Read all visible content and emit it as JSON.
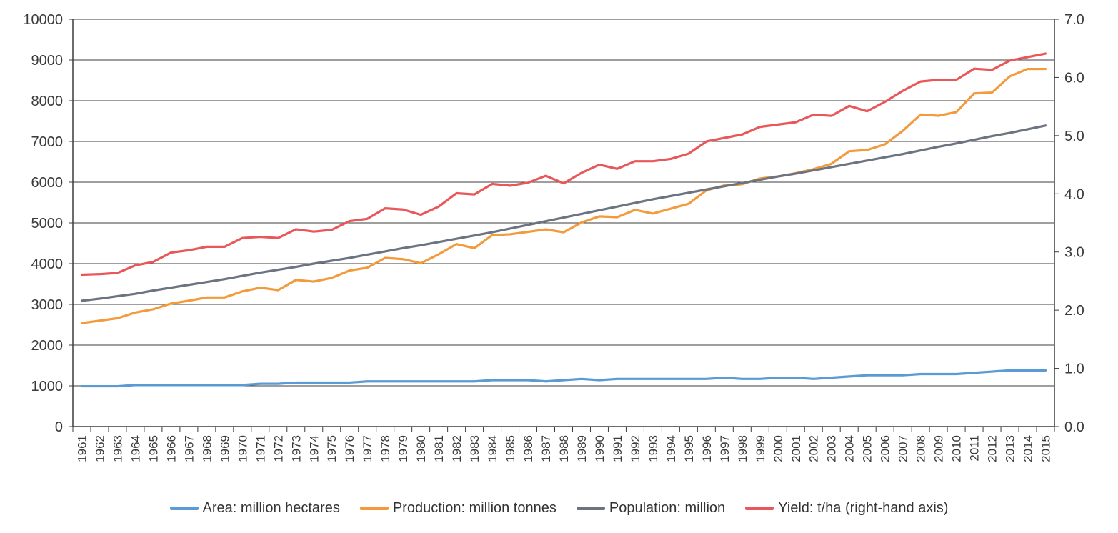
{
  "chart_data": {
    "type": "line",
    "title": "",
    "xlabel": "",
    "ylabel": "",
    "ylim": [
      0,
      10000
    ],
    "y2lim": [
      0,
      7
    ],
    "yticks": [
      "0",
      "1000",
      "2000",
      "3000",
      "4000",
      "5000",
      "6000",
      "7000",
      "8000",
      "9000",
      "10000"
    ],
    "y2ticks": [
      "0.0",
      "1.0",
      "2.0",
      "3.0",
      "4.0",
      "5.0",
      "6.0",
      "7.0"
    ],
    "grid": true,
    "legend_position": "bottom",
    "categories": [
      "1961",
      "1962",
      "1963",
      "1964",
      "1965",
      "1966",
      "1967",
      "1968",
      "1969",
      "1970",
      "1971",
      "1972",
      "1973",
      "1974",
      "1975",
      "1976",
      "1977",
      "1978",
      "1979",
      "1980",
      "1981",
      "1982",
      "1983",
      "1984",
      "1985",
      "1986",
      "1987",
      "1988",
      "1989",
      "1990",
      "1991",
      "1992",
      "1993",
      "1994",
      "1995",
      "1996",
      "1997",
      "1998",
      "1999",
      "2000",
      "2001",
      "2002",
      "2003",
      "2004",
      "2005",
      "2006",
      "2007",
      "2008",
      "2009",
      "2010",
      "2011",
      "2012",
      "2013",
      "2014",
      "2015"
    ],
    "series": [
      {
        "name": "Area: million hectares",
        "color": "#5b9bd5",
        "axis": "left",
        "values": [
          990,
          990,
          990,
          1020,
          1020,
          1020,
          1020,
          1020,
          1020,
          1020,
          1050,
          1050,
          1080,
          1080,
          1080,
          1080,
          1110,
          1110,
          1110,
          1110,
          1110,
          1110,
          1110,
          1140,
          1140,
          1140,
          1110,
          1140,
          1170,
          1140,
          1170,
          1170,
          1170,
          1170,
          1170,
          1170,
          1200,
          1170,
          1170,
          1200,
          1200,
          1170,
          1200,
          1230,
          1260,
          1260,
          1260,
          1290,
          1290,
          1290,
          1320,
          1350,
          1380,
          1380,
          1380
        ]
      },
      {
        "name": "Production: million tonnes",
        "color": "#f39b3c",
        "axis": "left",
        "values": [
          2540,
          2600,
          2660,
          2800,
          2880,
          3020,
          3090,
          3170,
          3170,
          3320,
          3410,
          3350,
          3600,
          3560,
          3650,
          3830,
          3900,
          4140,
          4110,
          4010,
          4230,
          4480,
          4380,
          4700,
          4720,
          4780,
          4840,
          4770,
          5010,
          5160,
          5140,
          5320,
          5230,
          5350,
          5470,
          5800,
          5920,
          5950,
          6090,
          6140,
          6220,
          6320,
          6450,
          6760,
          6790,
          6930,
          7260,
          7660,
          7630,
          7720,
          8180,
          8200,
          8600,
          8780,
          8780
        ]
      },
      {
        "name": "Population: million",
        "color": "#6b7480",
        "axis": "left",
        "values": [
          3090,
          3140,
          3200,
          3260,
          3340,
          3410,
          3480,
          3550,
          3620,
          3700,
          3780,
          3850,
          3920,
          4000,
          4070,
          4140,
          4220,
          4300,
          4380,
          4450,
          4530,
          4610,
          4690,
          4770,
          4860,
          4950,
          5040,
          5130,
          5220,
          5310,
          5400,
          5490,
          5580,
          5660,
          5740,
          5820,
          5900,
          5980,
          6060,
          6140,
          6210,
          6290,
          6370,
          6450,
          6530,
          6610,
          6690,
          6780,
          6870,
          6950,
          7040,
          7130,
          7210,
          7300,
          7390
        ]
      },
      {
        "name": "Yield: t/ha (right-hand axis)",
        "color": "#e8585a",
        "axis": "right",
        "values": [
          2.61,
          2.62,
          2.64,
          2.77,
          2.83,
          2.99,
          3.03,
          3.09,
          3.09,
          3.24,
          3.26,
          3.24,
          3.39,
          3.35,
          3.38,
          3.53,
          3.57,
          3.75,
          3.73,
          3.64,
          3.78,
          4.01,
          3.99,
          4.17,
          4.14,
          4.19,
          4.31,
          4.18,
          4.36,
          4.5,
          4.43,
          4.56,
          4.56,
          4.6,
          4.69,
          4.9,
          4.96,
          5.02,
          5.15,
          5.19,
          5.23,
          5.36,
          5.34,
          5.51,
          5.42,
          5.58,
          5.77,
          5.93,
          5.96,
          5.96,
          6.15,
          6.13,
          6.29,
          6.35,
          6.41
        ]
      }
    ]
  }
}
